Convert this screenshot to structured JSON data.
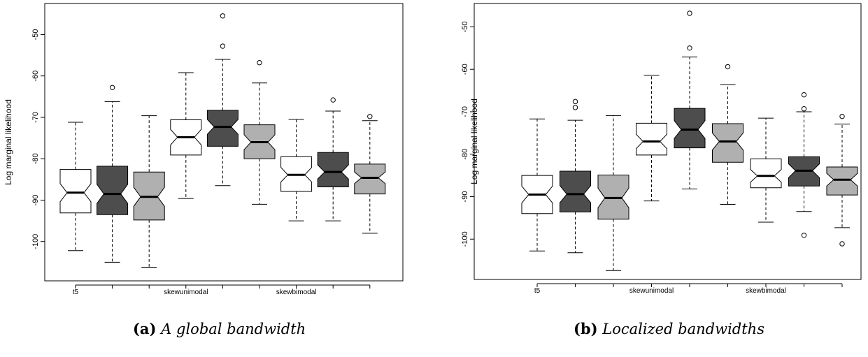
{
  "colors": {
    "white": "#ffffff",
    "dark": "#4d4d4d",
    "light": "#b0b0b0",
    "line": "#000000"
  },
  "panels": [
    {
      "caption_label": "(a)",
      "caption_text": "A global bandwidth",
      "chart_data": {
        "type": "box",
        "title": "",
        "xlabel": "",
        "ylabel": "Log marginal likelihood",
        "notched": true,
        "ylim": [
          -109.5,
          -42.5
        ],
        "yticks": [
          -100,
          -90,
          -80,
          -70,
          -60,
          -50
        ],
        "xtick_labels": [
          "t5",
          "",
          "",
          "skewunimodal",
          "",
          "",
          "skewbimodal",
          "",
          ""
        ],
        "boxes": [
          {
            "group": "t5",
            "fill": "white",
            "whislo": -102.2,
            "q1": -93.1,
            "med": -88.2,
            "q3": -82.6,
            "whishi": -71.2,
            "notch_lo": -90.4,
            "notch_hi": -86.0,
            "fliers": []
          },
          {
            "group": "t5",
            "fill": "dark",
            "whislo": -105.0,
            "q1": -93.5,
            "med": -88.5,
            "q3": -81.8,
            "whishi": -66.2,
            "notch_lo": -90.8,
            "notch_hi": -86.2,
            "fliers": [
              -62.8
            ]
          },
          {
            "group": "t5",
            "fill": "light",
            "whislo": -106.2,
            "q1": -94.8,
            "med": -89.2,
            "q3": -83.2,
            "whishi": -69.6,
            "notch_lo": -91.5,
            "notch_hi": -86.9,
            "fliers": []
          },
          {
            "group": "skewunimodal",
            "fill": "white",
            "whislo": -89.6,
            "q1": -79.1,
            "med": -74.8,
            "q3": -70.6,
            "whishi": -59.2,
            "notch_lo": -76.7,
            "notch_hi": -72.9,
            "fliers": []
          },
          {
            "group": "skewunimodal",
            "fill": "dark",
            "whislo": -86.5,
            "q1": -77.0,
            "med": -72.3,
            "q3": -68.3,
            "whishi": -56.0,
            "notch_lo": -74.1,
            "notch_hi": -70.5,
            "fliers": [
              -52.8,
              -45.5
            ]
          },
          {
            "group": "skewunimodal",
            "fill": "light",
            "whislo": -91.0,
            "q1": -80.0,
            "med": -76.0,
            "q3": -71.8,
            "whishi": -61.7,
            "notch_lo": -77.8,
            "notch_hi": -74.2,
            "fliers": [
              -56.8
            ]
          },
          {
            "group": "skewbimodal",
            "fill": "white",
            "whislo": -95.0,
            "q1": -87.9,
            "med": -83.9,
            "q3": -79.5,
            "whishi": -70.5,
            "notch_lo": -85.6,
            "notch_hi": -82.1,
            "fliers": []
          },
          {
            "group": "skewbimodal",
            "fill": "dark",
            "whislo": -95.0,
            "q1": -86.8,
            "med": -83.2,
            "q3": -78.5,
            "whishi": -68.5,
            "notch_lo": -84.9,
            "notch_hi": -81.5,
            "fliers": [
              -65.8
            ]
          },
          {
            "group": "skewbimodal",
            "fill": "light",
            "whislo": -98.0,
            "q1": -88.5,
            "med": -84.6,
            "q3": -81.3,
            "whishi": -70.8,
            "notch_lo": -86.0,
            "notch_hi": -83.2,
            "fliers": [
              -69.8
            ]
          }
        ]
      }
    },
    {
      "caption_label": "(b)",
      "caption_text": "Localized bandwidths",
      "chart_data": {
        "type": "box",
        "title": "",
        "xlabel": "",
        "ylabel": "Log marginal likelihood",
        "notched": true,
        "ylim": [
          -109.5,
          -44.5
        ],
        "yticks": [
          -100,
          -90,
          -80,
          -70,
          -60,
          -50
        ],
        "xtick_labels": [
          "t5",
          "",
          "",
          "skewunimodal",
          "",
          "",
          "skewbimodal",
          "",
          ""
        ],
        "boxes": [
          {
            "group": "t5",
            "fill": "white",
            "whislo": -102.8,
            "q1": -94.0,
            "med": -89.5,
            "q3": -85.0,
            "whishi": -71.7,
            "notch_lo": -91.5,
            "notch_hi": -87.5,
            "fliers": []
          },
          {
            "group": "t5",
            "fill": "dark",
            "whislo": -103.2,
            "q1": -93.6,
            "med": -89.4,
            "q3": -84.0,
            "whishi": -72.0,
            "notch_lo": -91.4,
            "notch_hi": -87.4,
            "fliers": [
              -69.0,
              -67.6
            ]
          },
          {
            "group": "t5",
            "fill": "light",
            "whislo": -107.4,
            "q1": -95.3,
            "med": -90.3,
            "q3": -84.9,
            "whishi": -70.9,
            "notch_lo": -92.6,
            "notch_hi": -88.0,
            "fliers": []
          },
          {
            "group": "skewunimodal",
            "fill": "white",
            "whislo": -91.0,
            "q1": -80.2,
            "med": -77.0,
            "q3": -72.7,
            "whishi": -61.4,
            "notch_lo": -78.7,
            "notch_hi": -75.3,
            "fliers": []
          },
          {
            "group": "skewunimodal",
            "fill": "dark",
            "whislo": -88.2,
            "q1": -78.5,
            "med": -74.2,
            "q3": -69.2,
            "whishi": -57.1,
            "notch_lo": -76.3,
            "notch_hi": -72.1,
            "fliers": [
              -55.0,
              -46.8
            ]
          },
          {
            "group": "skewunimodal",
            "fill": "light",
            "whislo": -91.8,
            "q1": -81.9,
            "med": -77.0,
            "q3": -72.8,
            "whishi": -63.6,
            "notch_lo": -79.0,
            "notch_hi": -75.0,
            "fliers": [
              -59.4
            ]
          },
          {
            "group": "skewbimodal",
            "fill": "white",
            "whislo": -96.0,
            "q1": -87.9,
            "med": -85.1,
            "q3": -81.1,
            "whishi": -71.5,
            "notch_lo": -86.6,
            "notch_hi": -83.6,
            "fliers": []
          },
          {
            "group": "skewbimodal",
            "fill": "dark",
            "whislo": -93.5,
            "q1": -87.5,
            "med": -83.9,
            "q3": -80.6,
            "whishi": -70.0,
            "notch_lo": -85.5,
            "notch_hi": -82.3,
            "fliers": [
              -69.3,
              -66.0,
              -99.1
            ]
          },
          {
            "group": "skewbimodal",
            "fill": "light",
            "whislo": -97.3,
            "q1": -89.6,
            "med": -86.0,
            "q3": -83.0,
            "whishi": -72.9,
            "notch_lo": -87.5,
            "notch_hi": -84.5,
            "fliers": [
              -71.1,
              -101.1
            ]
          }
        ]
      }
    }
  ]
}
